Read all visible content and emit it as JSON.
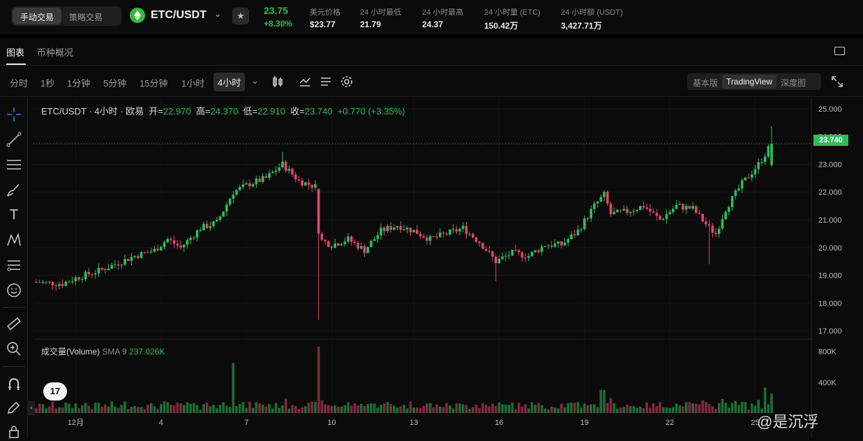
{
  "header": {
    "modes": [
      "手动交易",
      "策略交易"
    ],
    "pair": "ETC/USDT",
    "price": "23.75",
    "change": "+8.30%",
    "stats": [
      {
        "label": "美元价格",
        "value": "$23.77"
      },
      {
        "label": "24 小时最低",
        "value": "21.79"
      },
      {
        "label": "24 小时最高",
        "value": "24.37"
      },
      {
        "label": "24 小时量 (ETC)",
        "value": "150.42万"
      },
      {
        "label": "24 小时额 (USDT)",
        "value": "3,427.71万"
      }
    ]
  },
  "tabs": [
    "图表",
    "币种概况"
  ],
  "timeframes": [
    "分时",
    "1秒",
    "1分钟",
    "5分钟",
    "15分钟",
    "1小时",
    "4小时"
  ],
  "versions": [
    "基本版",
    "TradingView",
    "深度图"
  ],
  "legend": {
    "title": "ETC/USDT · 4小时 · 欧易",
    "open_label": "开=",
    "open": "22.970",
    "high_label": "高=",
    "high": "24.370",
    "low_label": "低=",
    "low": "22.910",
    "close_label": "收=",
    "close": "23.740",
    "change": "+0.770 (+3.35%)"
  },
  "volume_legend": {
    "name": "成交量(Volume)",
    "sma": "SMA 9",
    "value": "237.026K"
  },
  "price_label": "23.740",
  "tv_logo": "17",
  "collapse_label": "‹",
  "watermark": "@是沉浮",
  "colors": {
    "up": "#2ebd59",
    "down": "#e0466b",
    "bg": "#0b0b0b"
  },
  "chart_data": {
    "type": "candlestick",
    "price_ticks": [
      "25.000",
      "24.000",
      "23.000",
      "22.000",
      "21.000",
      "20.000",
      "19.000",
      "18.000",
      "17.000"
    ],
    "volume_ticks": [
      "800K",
      "400K"
    ],
    "x_ticks": [
      "12月",
      "4",
      "7",
      "10",
      "13",
      "16",
      "19",
      "22",
      "25"
    ],
    "ylim": [
      16.7,
      25.4
    ],
    "volume_max": 950000,
    "waypoints": [
      [
        0,
        18.75
      ],
      [
        8,
        18.7
      ],
      [
        12,
        18.9
      ],
      [
        20,
        19.2
      ],
      [
        30,
        19.7
      ],
      [
        36,
        19.9
      ],
      [
        40,
        20.3
      ],
      [
        44,
        20.0
      ],
      [
        50,
        20.7
      ],
      [
        55,
        20.9
      ],
      [
        60,
        22.0
      ],
      [
        65,
        22.3
      ],
      [
        70,
        22.5
      ],
      [
        75,
        23.0
      ],
      [
        80,
        22.4
      ],
      [
        85,
        22.2
      ],
      [
        86,
        20.3
      ],
      [
        90,
        20.1
      ],
      [
        95,
        20.3
      ],
      [
        100,
        19.9
      ],
      [
        105,
        20.6
      ],
      [
        110,
        20.8
      ],
      [
        115,
        20.6
      ],
      [
        120,
        20.3
      ],
      [
        125,
        20.5
      ],
      [
        130,
        20.7
      ],
      [
        135,
        20.2
      ],
      [
        140,
        19.5
      ],
      [
        145,
        19.8
      ],
      [
        150,
        19.7
      ],
      [
        155,
        20.1
      ],
      [
        160,
        20.1
      ],
      [
        165,
        20.6
      ],
      [
        170,
        21.5
      ],
      [
        173,
        21.9
      ],
      [
        175,
        21.2
      ],
      [
        180,
        21.3
      ],
      [
        185,
        21.5
      ],
      [
        190,
        21.0
      ],
      [
        195,
        21.5
      ],
      [
        200,
        21.4
      ],
      [
        205,
        20.7
      ],
      [
        207,
        20.5
      ],
      [
        210,
        21.4
      ],
      [
        215,
        22.3
      ],
      [
        220,
        23.0
      ],
      [
        224,
        23.74
      ]
    ]
  }
}
